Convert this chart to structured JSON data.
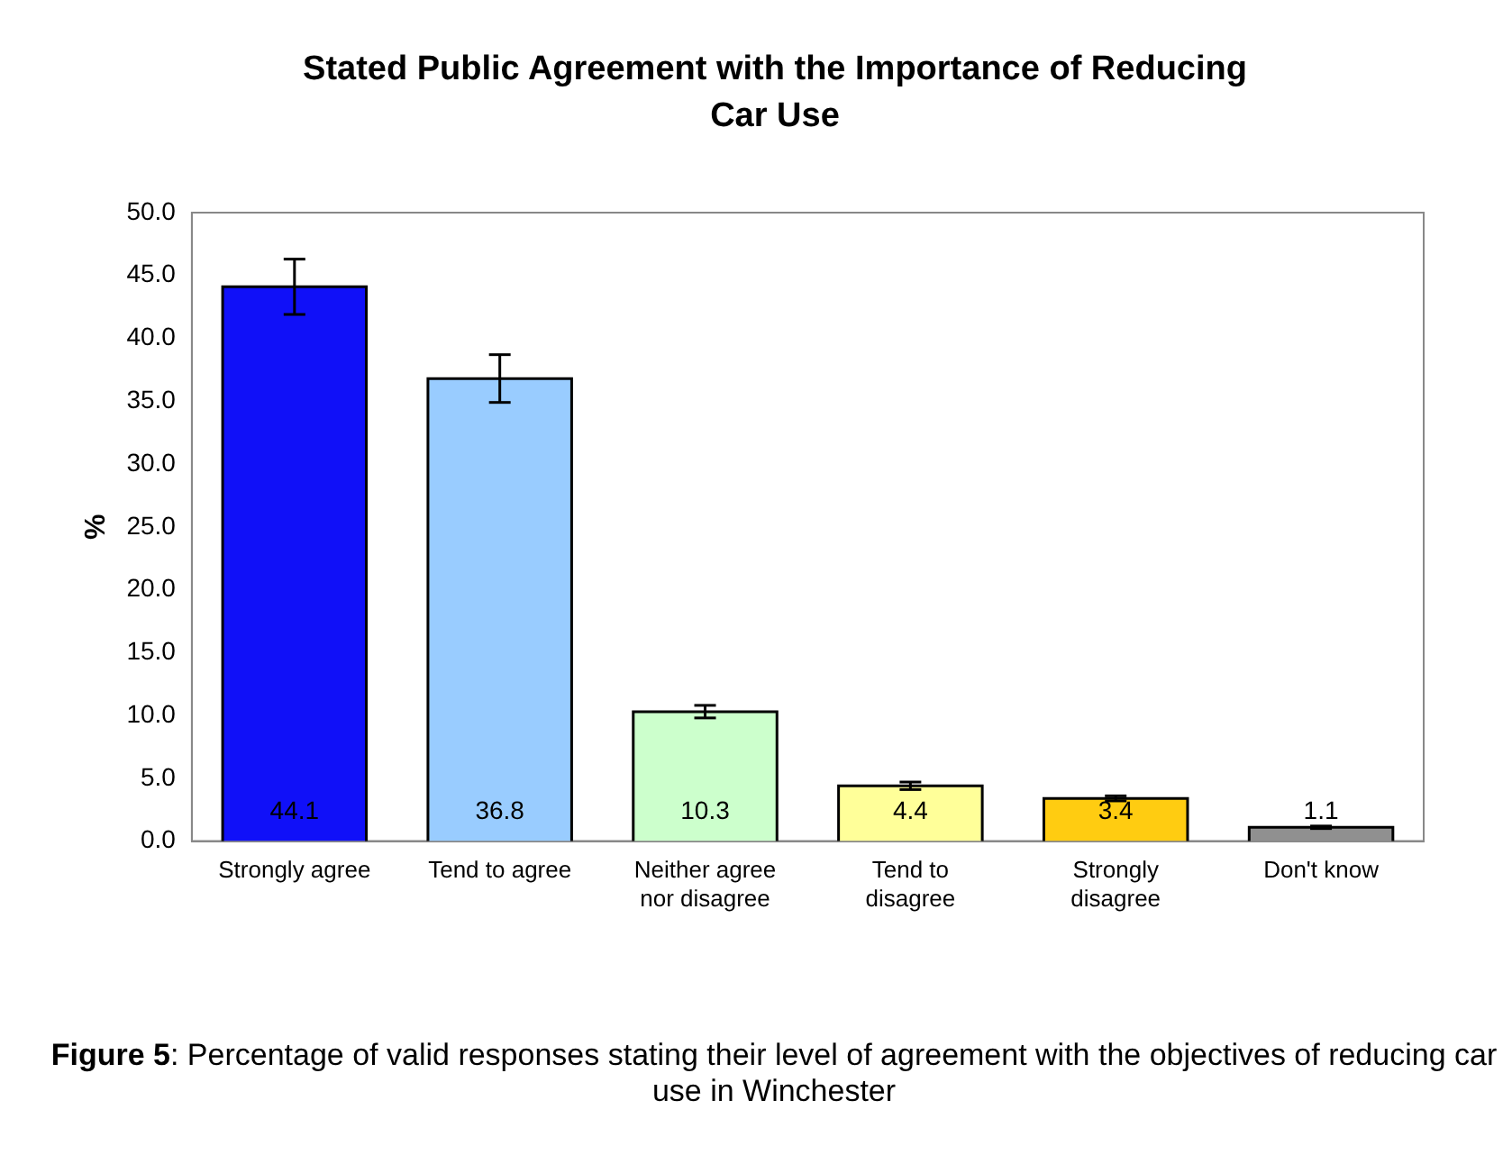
{
  "chart_data": {
    "type": "bar",
    "title": "Stated Public Agreement with the Importance of Reducing Car Use",
    "ylabel": "%",
    "categories": [
      "Strongly agree",
      "Tend to agree",
      "Neither agree nor disagree",
      "Tend to disagree",
      "Strongly disagree",
      "Don't know"
    ],
    "values": [
      44.1,
      36.8,
      10.3,
      4.4,
      3.4,
      1.1
    ],
    "colors": [
      "#1010f8",
      "#99ccff",
      "#ccffcc",
      "#ffff99",
      "#ffcc11",
      "#909090"
    ],
    "errors": [
      2.2,
      1.9,
      0.5,
      0.3,
      0.2,
      0.1
    ],
    "ylim": [
      0,
      50
    ],
    "yticks": [
      {
        "value": 0,
        "label": "0.0"
      },
      {
        "value": 5,
        "label": "5.0"
      },
      {
        "value": 10,
        "label": "10.0"
      },
      {
        "value": 15,
        "label": "15.0"
      },
      {
        "value": 20,
        "label": "20.0"
      },
      {
        "value": 25,
        "label": "25.0"
      },
      {
        "value": 30,
        "label": "30.0"
      },
      {
        "value": 35,
        "label": "35.0"
      },
      {
        "value": 40,
        "label": "40.0"
      },
      {
        "value": 45,
        "label": "45.0"
      },
      {
        "value": 50,
        "label": "50.0"
      }
    ],
    "grid": false,
    "legend": false,
    "data_labels": true,
    "annotations": [
      "Figure 5: Percentage of valid responses stating their level of agreement with the objectives of reducing car use in Winchester"
    ]
  }
}
